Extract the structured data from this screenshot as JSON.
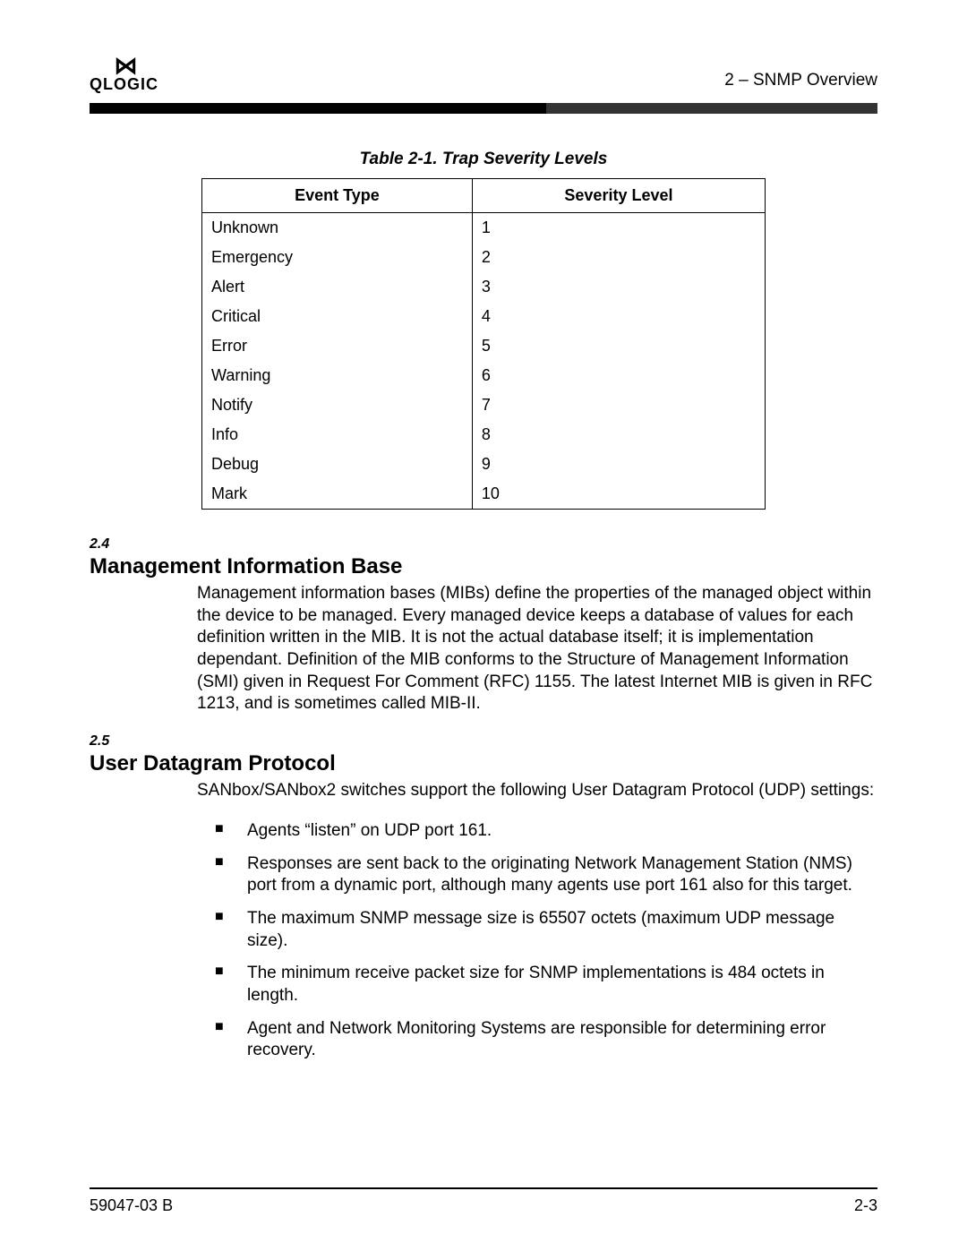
{
  "header": {
    "logo_text": "QLOGIC",
    "doc_section": "2 – SNMP Overview"
  },
  "table": {
    "caption": "Table 2-1. Trap Severity Levels",
    "columns": [
      "Event Type",
      "Severity Level"
    ],
    "rows": [
      [
        "Unknown",
        "1"
      ],
      [
        "Emergency",
        "2"
      ],
      [
        "Alert",
        "3"
      ],
      [
        "Critical",
        "4"
      ],
      [
        "Error",
        "5"
      ],
      [
        "Warning",
        "6"
      ],
      [
        "Notify",
        "7"
      ],
      [
        "Info",
        "8"
      ],
      [
        "Debug",
        "9"
      ],
      [
        "Mark",
        "10"
      ]
    ]
  },
  "section24": {
    "num": "2.4",
    "title": "Management Information Base",
    "body": "Management information bases (MIBs) define the properties of the managed object within the device to be managed. Every managed device keeps a database of values for each definition written in the MIB. It is not the actual database itself; it is implementation dependant. Definition of the MIB conforms to the Structure of Management Information (SMI) given in Request For Comment (RFC) 1155. The latest Internet MIB is given in RFC 1213, and is sometimes called MIB-II."
  },
  "section25": {
    "num": "2.5",
    "title": "User Datagram Protocol",
    "intro": "SANbox/SANbox2 switches support the following User Datagram Protocol (UDP) settings:",
    "bullets": [
      "Agents “listen” on UDP port 161.",
      "Responses are sent back to the originating Network Management Station (NMS) port from a dynamic port, although many agents use port 161 also for this target.",
      "The maximum SNMP message size is 65507 octets (maximum UDP message size).",
      "The minimum receive packet size for SNMP implementations is 484 octets in length.",
      "Agent and Network Monitoring Systems are responsible for determining error recovery."
    ]
  },
  "footer": {
    "doc_id": "59047-03 B",
    "page_num": "2-3"
  }
}
